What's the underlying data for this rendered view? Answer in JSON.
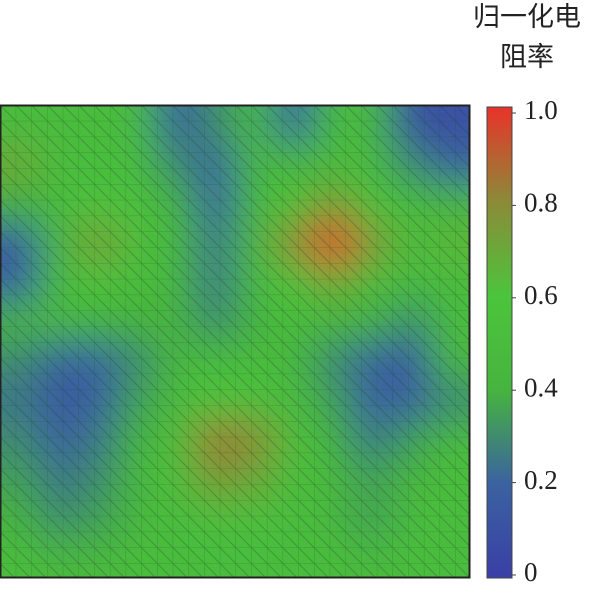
{
  "chart_data": {
    "type": "heatmap",
    "colorbar_label": [
      "归一化电",
      "阻率"
    ],
    "values": [
      [
        0.5,
        0.5,
        0.5,
        0.5,
        0.2,
        0.3,
        0.5,
        0.2,
        0.5,
        0.45,
        0.1,
        0.1
      ],
      [
        0.7,
        0.5,
        0.5,
        0.5,
        0.3,
        0.2,
        0.45,
        0.45,
        0.5,
        0.5,
        0.3,
        0.2
      ],
      [
        0.4,
        0.5,
        0.6,
        0.55,
        0.4,
        0.2,
        0.45,
        0.6,
        0.75,
        0.6,
        0.5,
        0.45
      ],
      [
        0.15,
        0.5,
        0.75,
        0.55,
        0.45,
        0.25,
        0.5,
        0.8,
        1.0,
        0.75,
        0.5,
        0.65
      ],
      [
        0.2,
        0.5,
        0.6,
        0.5,
        0.45,
        0.25,
        0.5,
        0.6,
        0.7,
        0.55,
        0.5,
        0.5
      ],
      [
        0.4,
        0.45,
        0.4,
        0.4,
        0.4,
        0.3,
        0.4,
        0.5,
        0.45,
        0.4,
        0.3,
        0.5
      ],
      [
        0.3,
        0.2,
        0.2,
        0.3,
        0.45,
        0.5,
        0.5,
        0.45,
        0.3,
        0.2,
        0.15,
        0.45
      ],
      [
        0.25,
        0.15,
        0.2,
        0.35,
        0.5,
        0.6,
        0.55,
        0.5,
        0.35,
        0.2,
        0.2,
        0.3
      ],
      [
        0.3,
        0.2,
        0.25,
        0.4,
        0.55,
        0.85,
        0.8,
        0.55,
        0.4,
        0.25,
        0.35,
        0.5
      ],
      [
        0.35,
        0.25,
        0.3,
        0.45,
        0.55,
        0.75,
        0.7,
        0.55,
        0.45,
        0.35,
        0.45,
        0.5
      ],
      [
        0.4,
        0.3,
        0.35,
        0.45,
        0.5,
        0.55,
        0.55,
        0.5,
        0.45,
        0.35,
        0.5,
        0.5
      ],
      [
        0.5,
        0.45,
        0.45,
        0.5,
        0.5,
        0.5,
        0.5,
        0.5,
        0.5,
        0.45,
        0.5,
        0.5
      ]
    ],
    "colormap": [
      "#3a3fa6",
      "#3b62a0",
      "#46b43e",
      "#4cc43c",
      "#8c8a38",
      "#e8332a"
    ],
    "clim": [
      0,
      1
    ],
    "cticks": [
      0,
      0.2,
      0.4,
      0.6,
      0.8,
      {
        "value": 1,
        "label": "1.0"
      }
    ]
  }
}
